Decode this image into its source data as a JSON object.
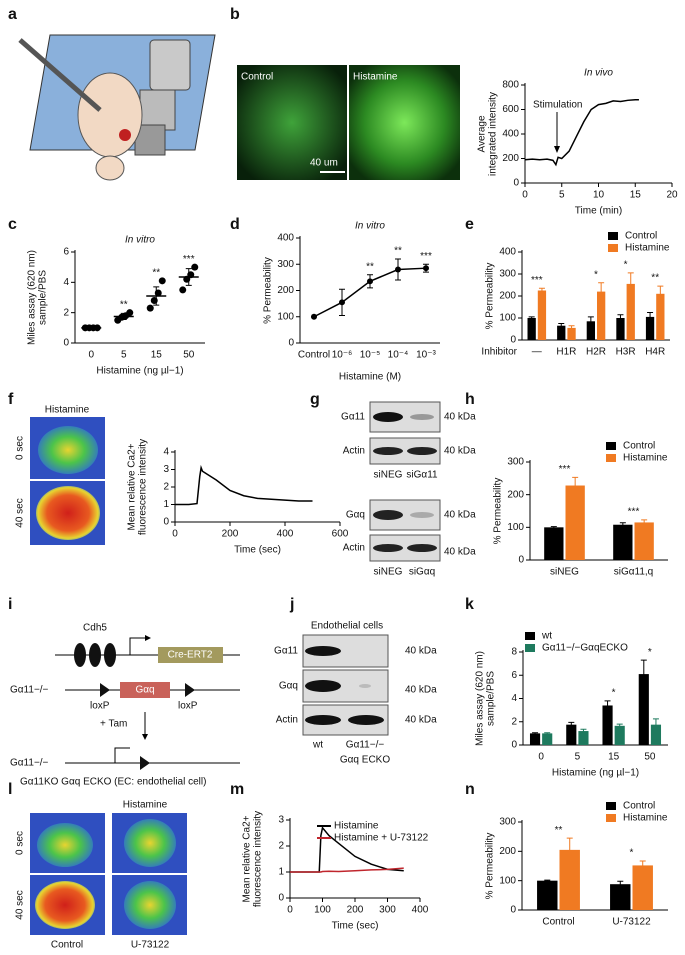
{
  "panel_labels": [
    "a",
    "b",
    "c",
    "d",
    "e",
    "f",
    "g",
    "h",
    "i",
    "j",
    "k",
    "l",
    "m",
    "n"
  ],
  "b_micrographs": {
    "left": "Control",
    "right": "Histamine",
    "scale_bar": "40 um"
  },
  "f_images": {
    "title": "Histamine",
    "rows": [
      "0 sec",
      "40 sec"
    ]
  },
  "g_blots": {
    "upper": {
      "rows": [
        "Gα11",
        "Actin"
      ],
      "lanes": [
        "siNEG",
        "siGα11"
      ]
    },
    "lower": {
      "rows": [
        "Gαq",
        "Actin"
      ],
      "lanes": [
        "siNEG",
        "siGαq"
      ]
    },
    "size": "40 kDa"
  },
  "i_diagram": {
    "promoter": "Cdh5",
    "cre": "Cre-ERT2",
    "allele": "Gα11−/−",
    "gene": "Gαq",
    "loxp": [
      "loxP",
      "loxP"
    ],
    "treatment": "+ Tam",
    "result_allele": "Gα11−/−",
    "caption": "Gα11KO Gαq ECKO (EC: endothelial cell)"
  },
  "j_blots": {
    "title": "Endothelial cells",
    "rows": [
      "Gα11",
      "Gαq",
      "Actin"
    ],
    "size": "40 kDa",
    "lanes": [
      "wt",
      "Gα11−/−"
    ],
    "lane_note": "Gαq ECKO"
  },
  "l_images": {
    "title": "Histamine",
    "rows": [
      "0 sec",
      "40 sec"
    ],
    "columns": [
      "Control",
      "U-73122"
    ]
  },
  "chart_data": [
    {
      "type": "line",
      "title": "In vivo",
      "annotations": [
        "Stimulation"
      ],
      "xlabel": "Time (min)",
      "ylabel": [
        "Average",
        "integrated intensity"
      ],
      "x": [
        0,
        1,
        2,
        3,
        3.8,
        4.2,
        4.5,
        5,
        6,
        7,
        8,
        9,
        10,
        11,
        12,
        13,
        14,
        15,
        15.5
      ],
      "series": [
        {
          "color": "#000000",
          "values": [
            190,
            195,
            190,
            195,
            185,
            150,
            210,
            200,
            260,
            380,
            500,
            600,
            640,
            650,
            670,
            665,
            675,
            680,
            680
          ]
        }
      ],
      "xlim": [
        0,
        20
      ],
      "xticks": [
        0,
        5,
        10,
        15,
        20
      ],
      "ylim": [
        0,
        800
      ],
      "yticks": [
        0,
        200,
        400,
        600,
        800
      ]
    },
    {
      "type": "dot",
      "title": "In vitro",
      "xlabel": "Histamine (ng µl−1)",
      "ylabel": [
        "Miles assay (620 nm)",
        "sample/PBS"
      ],
      "color": "#000000",
      "categories": [
        "0",
        "5",
        "15",
        "50"
      ],
      "points": [
        [
          1,
          1,
          1,
          1
        ],
        [
          1.5,
          1.7,
          1.8,
          2.0
        ],
        [
          2.3,
          2.8,
          3.3,
          4.1
        ],
        [
          3.5,
          4.2,
          4.5,
          5.0
        ]
      ],
      "means": [
        1,
        1.75,
        3.1,
        4.35
      ],
      "errors": [
        0,
        0.2,
        0.6,
        0.55
      ],
      "significance": [
        null,
        "**",
        "**",
        "***"
      ],
      "ylim": [
        0,
        6
      ],
      "yticks": [
        0,
        2,
        4,
        6
      ]
    },
    {
      "type": "line",
      "title": "In vitro",
      "xlabel": "Histamine (M)",
      "ylabel": [
        "% Permeability"
      ],
      "categories": [
        "Control",
        "10⁻⁶",
        "10⁻⁵",
        "10⁻⁴",
        "10⁻³"
      ],
      "series": [
        {
          "color": "#000000",
          "values": [
            100,
            155,
            235,
            280,
            285
          ],
          "errors": [
            0,
            50,
            25,
            40,
            15
          ]
        }
      ],
      "significance": [
        null,
        null,
        "**",
        "**",
        "***"
      ],
      "ylim": [
        0,
        400
      ],
      "yticks": [
        0,
        100,
        200,
        300,
        400
      ]
    },
    {
      "type": "bar",
      "ylabel": [
        "% Permeability"
      ],
      "category_label": "Inhibitor",
      "categories": [
        "—",
        "H1R",
        "H2R",
        "H3R",
        "H4R"
      ],
      "legend": "upper right",
      "series": [
        {
          "name": "Control",
          "color": "#000000",
          "values": [
            100,
            65,
            85,
            100,
            105
          ],
          "errors": [
            5,
            10,
            20,
            15,
            20
          ]
        },
        {
          "name": "Histamine",
          "color": "#f07a22",
          "values": [
            225,
            55,
            220,
            255,
            210
          ],
          "errors": [
            10,
            10,
            40,
            50,
            35
          ]
        }
      ],
      "significance": [
        "***",
        null,
        "*",
        "*",
        "**"
      ],
      "ylim": [
        0,
        400
      ],
      "yticks": [
        0,
        100,
        200,
        300,
        400
      ]
    },
    {
      "type": "line",
      "xlabel": "Time (sec)",
      "ylabel": [
        "Mean relative Ca2+",
        "fluorescence intensity"
      ],
      "x": [
        0,
        50,
        80,
        90,
        95,
        100,
        120,
        150,
        200,
        250,
        300,
        350,
        400,
        450,
        500
      ],
      "series": [
        {
          "color": "#000000",
          "values": [
            1,
            1,
            1.05,
            2.6,
            3.1,
            2.9,
            2.7,
            2.4,
            1.8,
            1.5,
            1.35,
            1.3,
            1.25,
            1.2,
            1.2
          ]
        }
      ],
      "xlim": [
        0,
        600
      ],
      "xticks": [
        0,
        200,
        400,
        600
      ],
      "ylim": [
        0,
        4
      ],
      "yticks": [
        0,
        1,
        2,
        3,
        4
      ]
    },
    {
      "type": "bar",
      "ylabel": [
        "% Permeability"
      ],
      "categories": [
        "siNEG",
        "siGα11,q"
      ],
      "legend": "upper right",
      "series": [
        {
          "name": "Control",
          "color": "#000000",
          "values": [
            100,
            108
          ],
          "errors": [
            2,
            6
          ]
        },
        {
          "name": "Histamine",
          "color": "#f07a22",
          "values": [
            228,
            115
          ],
          "errors": [
            25,
            8
          ]
        }
      ],
      "significance": [
        "***",
        "***"
      ],
      "ylim": [
        0,
        300
      ],
      "yticks": [
        0,
        100,
        200,
        300
      ]
    },
    {
      "type": "bar",
      "xlabel": "Histamine (ng µl−1)",
      "ylabel": [
        "Miles assay (620 nm)",
        "sample/PBS"
      ],
      "categories": [
        "0",
        "5",
        "15",
        "50"
      ],
      "legend": "upper left",
      "series": [
        {
          "name": "wt",
          "color": "#000000",
          "values": [
            1,
            1.75,
            3.4,
            6.1
          ],
          "errors": [
            0.05,
            0.2,
            0.4,
            1.2
          ]
        },
        {
          "name": "Gα11−/−GαqECKO",
          "color": "#1e7a5e",
          "values": [
            1,
            1.2,
            1.65,
            1.75
          ],
          "errors": [
            0.05,
            0.15,
            0.15,
            0.5
          ]
        }
      ],
      "significance": [
        null,
        null,
        "*",
        "*"
      ],
      "ylim": [
        0,
        8
      ],
      "yticks": [
        0,
        2,
        4,
        6,
        8
      ]
    },
    {
      "type": "line",
      "xlabel": "Time (sec)",
      "ylabel": [
        "Mean relative Ca2+",
        "fluorescence intensity"
      ],
      "legend": "upper center",
      "x": [
        0,
        50,
        90,
        95,
        100,
        120,
        150,
        200,
        250,
        300,
        350
      ],
      "series": [
        {
          "name": "Histamine",
          "color": "#000000",
          "values": [
            1,
            1,
            1,
            2.4,
            2.7,
            2.4,
            2.1,
            1.6,
            1.3,
            1.1,
            1.05
          ]
        },
        {
          "name": "Histamine + U-73122",
          "color": "#c0262d",
          "values": [
            1,
            1,
            1,
            1,
            1.02,
            1.03,
            1.02,
            1.05,
            1.08,
            1.1,
            1.15
          ]
        }
      ],
      "xlim": [
        0,
        400
      ],
      "xticks": [
        0,
        100,
        200,
        300,
        400
      ],
      "ylim": [
        0,
        3
      ],
      "yticks": [
        0,
        1,
        2,
        3
      ]
    },
    {
      "type": "bar",
      "ylabel": [
        "% Permeability"
      ],
      "categories": [
        "Control",
        "U-73122"
      ],
      "legend": "upper right",
      "series": [
        {
          "name": "Control",
          "color": "#000000",
          "values": [
            100,
            88
          ],
          "errors": [
            2,
            10
          ]
        },
        {
          "name": "Histamine",
          "color": "#f07a22",
          "values": [
            205,
            152
          ],
          "errors": [
            40,
            15
          ]
        }
      ],
      "significance": [
        "**",
        "*"
      ],
      "ylim": [
        0,
        300
      ],
      "yticks": [
        0,
        100,
        200,
        300
      ]
    }
  ]
}
